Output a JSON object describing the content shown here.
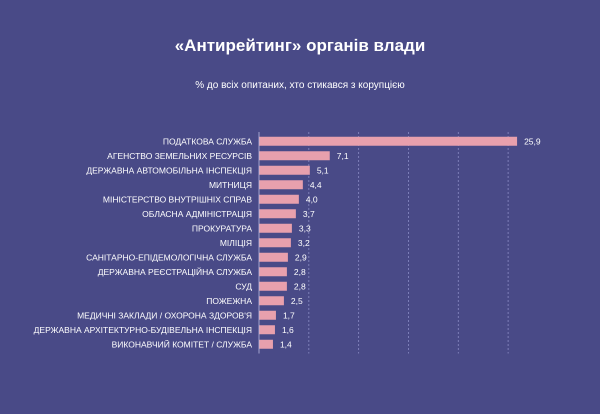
{
  "chart_data": {
    "type": "bar",
    "orientation": "horizontal",
    "title": "«Антирейтинг» органів влади",
    "subtitle": "% до всіх опитаних, хто стикався з корупцією",
    "categories": [
      "ПОДАТКОВА СЛУЖБА",
      "АГЕНСТВО ЗЕМЕЛЬНИХ РЕСУРСІВ",
      "ДЕРЖАВНА АВТОМОБІЛЬНА ІНСПЕКЦІЯ",
      "МИТНИЦЯ",
      "МІНІСТЕРСТВО ВНУТРІШНІХ СПРАВ",
      "ОБЛАСНА АДМІНІСТРАЦІЯ",
      "ПРОКУРАТУРА",
      "МІЛІЦІЯ",
      "САНІТАРНО-ЕПІДЕМОЛОГІЧНА СЛУЖБА",
      "ДЕРЖАВНА РЕЄСТРАЦІЙНА СЛУЖБА",
      "СУД",
      "ПОЖЕЖНА",
      "МЕДИЧНІ ЗАКЛАДИ / ОХОРОНА ЗДОРОВ'Я",
      "ДЕРЖАВНА АРХІТЕКТУРНО-БУДІВЕЛЬНА ІНСПЕКЦІЯ",
      "ВИКОНАВЧИЙ КОМІТЕТ / СЛУЖБА"
    ],
    "values": [
      25.9,
      7.1,
      5.1,
      4.4,
      4.0,
      3.7,
      3.3,
      3.2,
      2.9,
      2.8,
      2.8,
      2.5,
      1.7,
      1.6,
      1.4
    ],
    "value_labels": [
      "25,9",
      "7,1",
      "5,1",
      "4,4",
      "4,0",
      "3,7",
      "3,3",
      "3,2",
      "2,9",
      "2,8",
      "2,8",
      "2,5",
      "1,7",
      "1,6",
      "1,4"
    ],
    "xlim": [
      0,
      28
    ],
    "grid": true,
    "bar_color": "#e8a0ad",
    "background": "#494a87"
  }
}
